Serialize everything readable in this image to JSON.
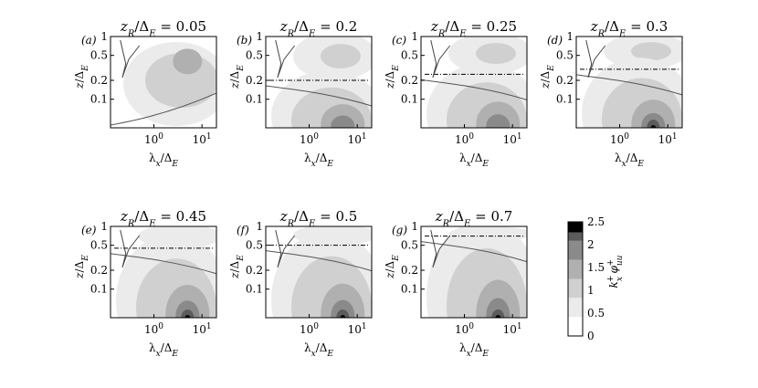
{
  "chart_data": {
    "type": "heatmap",
    "description_free": true,
    "x_axis": {
      "label_main": "λ",
      "label_sub": "x",
      "label_denom": "/Δ",
      "label_denom_sub": "E",
      "scale": "log",
      "xlim": [
        0.125,
        20
      ],
      "ticks": [
        {
          "value": 1,
          "base": "10",
          "exp": "0"
        },
        {
          "value": 10,
          "base": "10",
          "exp": "1"
        }
      ]
    },
    "y_axis": {
      "label_main": "z",
      "label_denom": "/Δ",
      "label_denom_sub": "E",
      "scale": "log",
      "ylim": [
        0.035,
        1
      ],
      "ticks": [
        {
          "value": 0.1,
          "text": "0.1"
        },
        {
          "value": 0.2,
          "text": "0.2"
        },
        {
          "value": 0.5,
          "text": "0.5"
        },
        {
          "value": 1,
          "text": "1"
        }
      ]
    },
    "colorbar": {
      "label": "k_x^+ φ_uu^+",
      "label_parts": [
        "k",
        "x",
        "+",
        "φ",
        "uu",
        "+"
      ],
      "min": 0,
      "max": 2.5,
      "levels": [
        0,
        0.5,
        1,
        1.5,
        2,
        2.5
      ],
      "tick_labels": [
        "0",
        "0.5",
        "1",
        "1.5",
        "2",
        "2.5"
      ],
      "colors": [
        "#ffffff",
        "#ebebeb",
        "#d0d0d0",
        "#b0b0b0",
        "#8a8a8a",
        "#5c5c5c",
        "#000000"
      ]
    },
    "panels": [
      {
        "tag": "(a)",
        "title_lhs": "z",
        "title_sub": "R",
        "title_denom": "/Δ",
        "title_denom_sub": "E",
        "title_eq": " = ",
        "value": "0.05",
        "zR": 0.05,
        "peak": {
          "x": 5,
          "y": 0.4,
          "level": 1.5
        }
      },
      {
        "tag": "(b)",
        "title_lhs": "z",
        "title_sub": "R",
        "title_denom": "/Δ",
        "title_denom_sub": "E",
        "title_eq": " = ",
        "value": "0.2",
        "zR": 0.2,
        "peak": {
          "x": 5,
          "y": 0.045,
          "level": 2
        }
      },
      {
        "tag": "(c)",
        "title_lhs": "z",
        "title_sub": "R",
        "title_denom": "/Δ",
        "title_denom_sub": "E",
        "title_eq": " = ",
        "value": "0.25",
        "zR": 0.25,
        "peak": {
          "x": 5,
          "y": 0.045,
          "level": 2
        }
      },
      {
        "tag": "(d)",
        "title_lhs": "z",
        "title_sub": "R",
        "title_denom": "/Δ",
        "title_denom_sub": "E",
        "title_eq": " = ",
        "value": "0.3",
        "zR": 0.3,
        "peak": {
          "x": 5,
          "y": 0.04,
          "level": 2.5
        }
      },
      {
        "tag": "(e)",
        "title_lhs": "z",
        "title_sub": "R",
        "title_denom": "/Δ",
        "title_denom_sub": "E",
        "title_eq": " = ",
        "value": "0.45",
        "zR": 0.45,
        "peak": {
          "x": 5,
          "y": 0.04,
          "level": 2.5
        }
      },
      {
        "tag": "(f)",
        "title_lhs": "z",
        "title_sub": "R",
        "title_denom": "/Δ",
        "title_denom_sub": "E",
        "title_eq": " = ",
        "value": "0.5",
        "zR": 0.5,
        "peak": {
          "x": 5,
          "y": 0.04,
          "level": 2.5
        }
      },
      {
        "tag": "(g)",
        "title_lhs": "z",
        "title_sub": "R",
        "title_denom": "/Δ",
        "title_denom_sub": "E",
        "title_eq": " = ",
        "value": "0.7",
        "zR": 0.7,
        "peak": {
          "x": 5,
          "y": 0.04,
          "level": 2.5
        }
      }
    ]
  }
}
